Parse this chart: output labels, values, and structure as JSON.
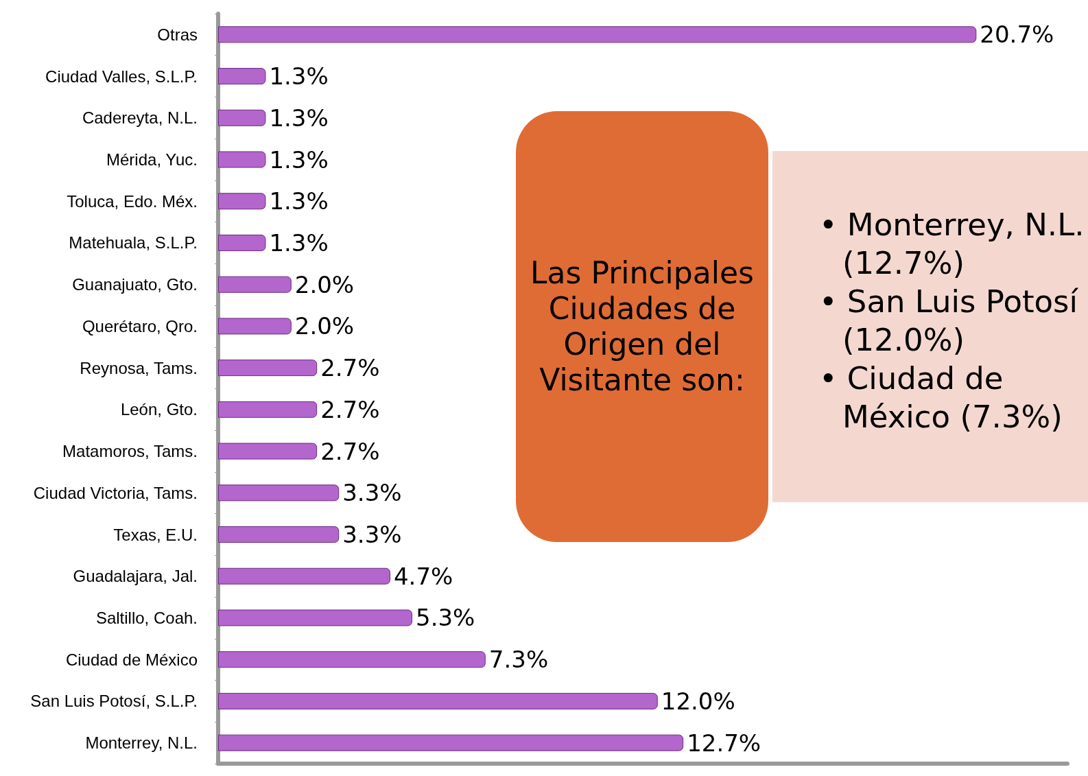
{
  "chart_data": {
    "type": "bar",
    "orientation": "horizontal",
    "tick_labels": "y",
    "grid": false,
    "categories": [
      "Otras",
      "Ciudad Valles, S.L.P.",
      "Cadereyta, N.L.",
      "Mérida, Yuc.",
      "Toluca, Edo. Méx.",
      "Matehuala, S.L.P.",
      "Guanajuato, Gto.",
      "Querétaro, Qro.",
      "Reynosa, Tams.",
      "León, Gto.",
      "Matamoros, Tams.",
      "Ciudad Victoria, Tams.",
      "Texas, E.U.",
      "Guadalajara, Jal.",
      "Saltillo, Coah.",
      "Ciudad de México",
      "San Luis Potosí, S.L.P.",
      "Monterrey, N.L."
    ],
    "values": [
      20.7,
      1.3,
      1.3,
      1.3,
      1.3,
      1.3,
      2.0,
      2.0,
      2.7,
      2.7,
      2.7,
      3.3,
      3.3,
      4.7,
      5.3,
      7.3,
      12.0,
      12.7
    ],
    "value_labels": [
      "20.7%",
      "1.3%",
      "1.3%",
      "1.3%",
      "1.3%",
      "1.3%",
      "2.0%",
      "2.0%",
      "2.7%",
      "2.7%",
      "2.7%",
      "3.3%",
      "3.3%",
      "4.7%",
      "5.3%",
      "7.3%",
      "12.0%",
      "12.7%"
    ],
    "color": "#b366cc",
    "annotations": [
      "Las Principales Ciudades de Origen del Visitante son:",
      "• Monterrey, N.L. (12.7%)",
      "• San Luis Potosí (12.0%)",
      "• Ciudad de México (7.3%)"
    ]
  }
}
